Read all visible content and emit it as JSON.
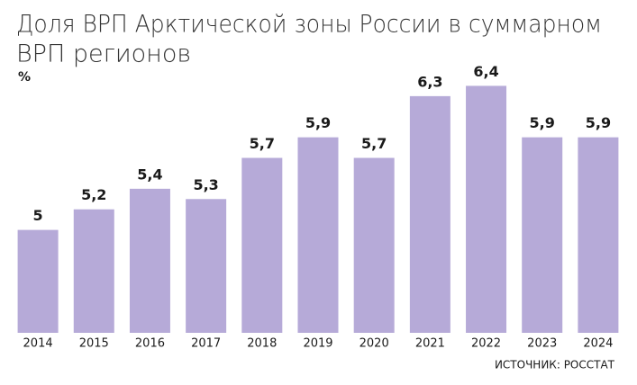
{
  "chart_data": {
    "type": "bar",
    "title": [
      "Доля ВРП Арктической зоны России в суммарном",
      "ВРП регионов"
    ],
    "unit": "%",
    "source": "ИСТОЧНИК: РОССТАТ",
    "categories": [
      "2014",
      "2015",
      "2016",
      "2017",
      "2018",
      "2019",
      "2020",
      "2021",
      "2022",
      "2023",
      "2024"
    ],
    "values": [
      5,
      5.2,
      5.4,
      5.3,
      5.7,
      5.9,
      5.7,
      6.3,
      6.4,
      5.9,
      5.9
    ],
    "value_labels": [
      "5",
      "5,2",
      "5,4",
      "5,3",
      "5,7",
      "5,9",
      "5,7",
      "6,3",
      "6,4",
      "5,9",
      "5,9"
    ],
    "color": "#b6aad8",
    "ylim": [
      4,
      6.5
    ]
  }
}
